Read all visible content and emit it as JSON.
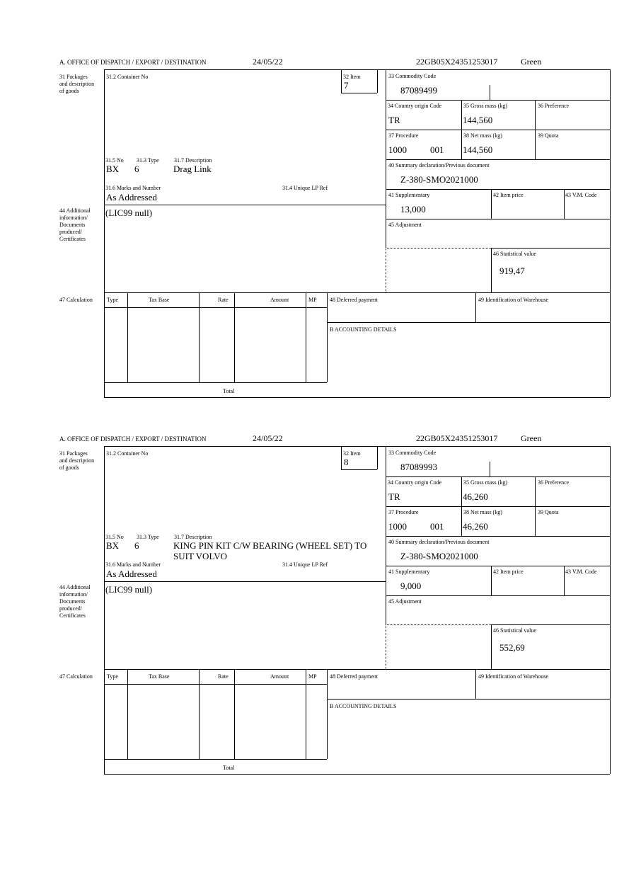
{
  "labels": {
    "office": "A.  OFFICE OF DISPATCH / EXPORT / DESTINATION",
    "packages": "31 Packages and description of goods",
    "container_no": "31.2 Container No",
    "item": "32 Item",
    "no": "31.5 No",
    "type": "31.3 Type",
    "description": "31.7 Description",
    "marks": "31.6 Marks and Number",
    "unique_lp_ref": "31.4 Unique LP Ref",
    "commodity_code": "33 Commodity Code",
    "country_origin": "34 Country origin Code",
    "gross_mass": "35 Gross mass (kg)",
    "preference": "36 Preference",
    "procedure": "37 Procedure",
    "net_mass": "38 Net mass (kg)",
    "quota": "39 Quota",
    "summary_declaration": "40 Summary declaration/Previous document",
    "supplementary": "41 Supplementary",
    "item_price": "42 Item price",
    "vm_code": "43 V.M. Code",
    "additional_info": "44 Additional information/ Documents produced/ Certificates",
    "adjustment": "45 Adjustment",
    "statistical_value": "46 Statistical value",
    "calculation": "47 Calculation",
    "calc_type": "Type",
    "calc_tax_base": "Tax Base",
    "calc_rate": "Rate",
    "calc_amount": "Amount",
    "calc_mp": "MP",
    "deferred_payment": "48 Deferred payment",
    "warehouse": "49 Identification of Warehouse",
    "accounting": "B ACCOUNTING DETAILS",
    "total": "Total"
  },
  "forms": [
    {
      "date": "24/05/22",
      "reference": "22GB05X24351253017",
      "route": "Green",
      "item": "7",
      "no": "BX",
      "type": "6",
      "description": "Drag Link",
      "marks": "As Addressed",
      "commodity_code": "87089499",
      "country_origin": "TR",
      "gross_mass": "144,560",
      "procedure": "1000",
      "procedure_additional": "001",
      "net_mass": "144,560",
      "summary_declaration": "Z-380-SMO2021000",
      "supplementary": "13,000",
      "additional_info": "(LIC99 null)",
      "statistical_value": "919,47"
    },
    {
      "date": "24/05/22",
      "reference": "22GB05X24351253017",
      "route": "Green",
      "item": "8",
      "no": "BX",
      "type": "6",
      "description": "KING PIN KIT C/W BEARING (WHEEL SET) TO SUIT VOLVO",
      "marks": "As Addressed",
      "commodity_code": "87089993",
      "country_origin": "TR",
      "gross_mass": "46,260",
      "procedure": "1000",
      "procedure_additional": "001",
      "net_mass": "46,260",
      "summary_declaration": "Z-380-SMO2021000",
      "supplementary": "9,000",
      "additional_info": "(LIC99 null)",
      "statistical_value": "552,69"
    }
  ]
}
